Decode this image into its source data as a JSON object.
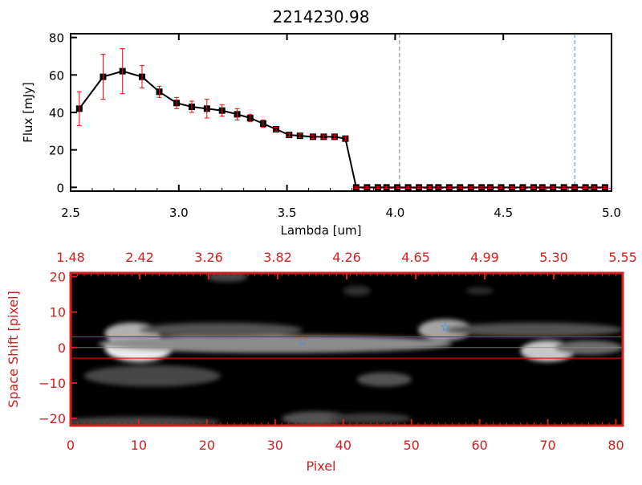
{
  "chart_data": [
    {
      "type": "line",
      "title": "2214230.98",
      "xlabel": "Lambda [um]",
      "ylabel": "Flux [mJy]",
      "xlim": [
        2.5,
        5.0
      ],
      "ylim": [
        -2,
        82
      ],
      "xticks": [
        "2.5",
        "3.0",
        "3.5",
        "4.0",
        "4.5",
        "5.0"
      ],
      "xtick_values": [
        2.5,
        3.0,
        3.5,
        4.0,
        4.5,
        5.0
      ],
      "yticks": [
        "0",
        "20",
        "40",
        "60",
        "80"
      ],
      "ytick_values": [
        0,
        20,
        40,
        60,
        80
      ],
      "series": [
        {
          "name": "flux",
          "x": [
            2.54,
            2.65,
            2.74,
            2.83,
            2.91,
            2.99,
            3.06,
            3.13,
            3.2,
            3.27,
            3.33,
            3.39,
            3.45,
            3.51,
            3.56,
            3.62,
            3.67,
            3.72,
            3.77,
            3.82,
            3.87,
            3.92,
            3.96,
            4.01,
            4.06,
            4.11,
            4.16,
            4.2,
            4.25,
            4.3,
            4.35,
            4.4,
            4.44,
            4.49,
            4.54,
            4.59,
            4.64,
            4.68,
            4.73,
            4.78,
            4.83,
            4.88,
            4.92,
            4.97
          ],
          "y": [
            42,
            59,
            62,
            59,
            51,
            45,
            43,
            42,
            41,
            39,
            37,
            34,
            31,
            28,
            27.5,
            27,
            27,
            27,
            26,
            0,
            0,
            0,
            0,
            0,
            0,
            0,
            0,
            0,
            0,
            0,
            0,
            0,
            0,
            0,
            0,
            0,
            0,
            0,
            0,
            0,
            0,
            0,
            0,
            0
          ],
          "err": [
            9,
            12,
            12,
            6,
            3,
            3,
            3,
            5,
            3,
            3,
            2,
            2,
            1,
            1,
            1,
            1,
            1,
            1,
            1,
            0.5,
            0.5,
            0.5,
            0.5,
            0.5,
            0.5,
            0.5,
            0.5,
            0.5,
            0.5,
            0.5,
            0.5,
            0.5,
            0.5,
            0.5,
            0.5,
            0.5,
            0.5,
            0.5,
            0.5,
            0.5,
            0.5,
            0.5,
            0.5,
            0.5
          ]
        }
      ],
      "vlines": [
        {
          "x": 4.02,
          "color": "#808080"
        },
        {
          "x": 4.83,
          "color": "#1e90ff"
        }
      ],
      "hline": {
        "y": 0,
        "color": "#ff0000",
        "from_x": 3.82
      }
    },
    {
      "type": "heatmap",
      "xlabel": "Pixel",
      "ylabel": "Space Shift [pixel]",
      "xlim": [
        0,
        81
      ],
      "ylim": [
        -22,
        21
      ],
      "xticks": [
        "0",
        "10",
        "20",
        "30",
        "40",
        "50",
        "60",
        "70",
        "80"
      ],
      "xtick_values": [
        0,
        10,
        20,
        30,
        40,
        50,
        60,
        70,
        80
      ],
      "yticks": [
        "20",
        "10",
        "0",
        "−10",
        "−20"
      ],
      "ytick_values": [
        20,
        10,
        0,
        -10,
        -20
      ],
      "top_ticks": [
        "1.48",
        "2.42",
        "3.26",
        "3.82",
        "4.26",
        "4.65",
        "4.99",
        "5.30",
        "5.55"
      ],
      "aperture_lines": [
        3,
        -3
      ],
      "center_line": 0,
      "stars": [
        {
          "x": 34,
          "y": 2
        },
        {
          "x": 55,
          "y": 6
        }
      ],
      "blobs": [
        {
          "x": 10,
          "y": 0,
          "rx": 5,
          "ry": 4,
          "v": 1.0
        },
        {
          "x": 9,
          "y": 4,
          "rx": 4,
          "ry": 3,
          "v": 0.75
        },
        {
          "x": 30,
          "y": 1,
          "rx": 26,
          "ry": 2.5,
          "v": 0.6
        },
        {
          "x": 22,
          "y": 5,
          "rx": 12,
          "ry": 2,
          "v": 0.35
        },
        {
          "x": 55,
          "y": 5,
          "rx": 4,
          "ry": 3,
          "v": 0.7
        },
        {
          "x": 68,
          "y": 5,
          "rx": 13,
          "ry": 2,
          "v": 0.35
        },
        {
          "x": 70,
          "y": -1,
          "rx": 4,
          "ry": 3,
          "v": 0.85
        },
        {
          "x": 76,
          "y": 0,
          "rx": 5,
          "ry": 2,
          "v": 0.45
        },
        {
          "x": 12,
          "y": -8,
          "rx": 10,
          "ry": 3,
          "v": 0.3
        },
        {
          "x": 46,
          "y": -9,
          "rx": 4,
          "ry": 2,
          "v": 0.35
        },
        {
          "x": 10,
          "y": -21,
          "rx": 12,
          "ry": 1.5,
          "v": 0.3
        },
        {
          "x": 36,
          "y": -20,
          "rx": 5,
          "ry": 2,
          "v": 0.35
        },
        {
          "x": 44,
          "y": -20,
          "rx": 6,
          "ry": 1.5,
          "v": 0.25
        },
        {
          "x": 23,
          "y": 20,
          "rx": 3,
          "ry": 1.5,
          "v": 0.3
        },
        {
          "x": 42,
          "y": 16,
          "rx": 2,
          "ry": 1.5,
          "v": 0.2
        },
        {
          "x": 60,
          "y": 16,
          "rx": 2,
          "ry": 1,
          "v": 0.2
        }
      ]
    }
  ],
  "colors": {
    "axis_red": "#d02020",
    "error_red": "#ff0000",
    "star_blue": "#1e90ff"
  }
}
